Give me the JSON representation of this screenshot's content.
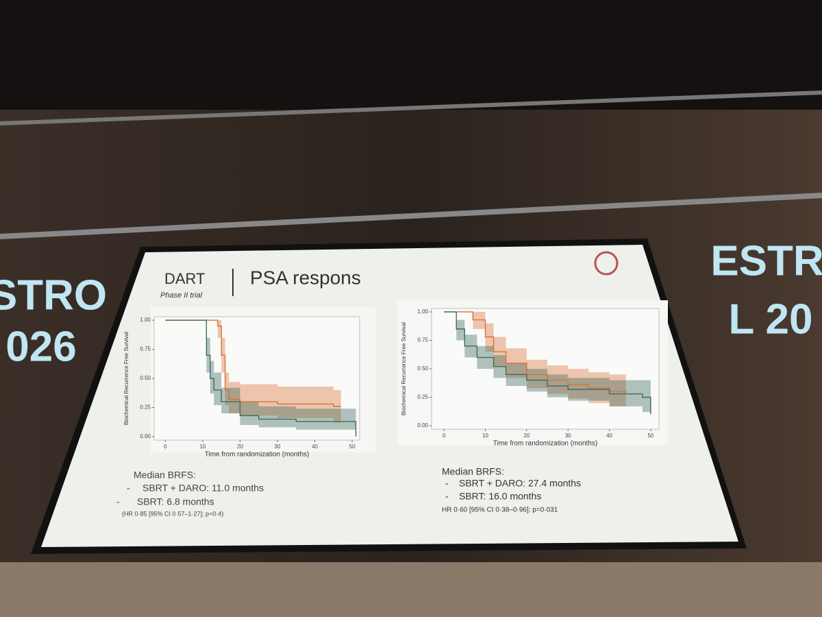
{
  "slide": {
    "label": "DART",
    "sublabel": "Phase II trial",
    "title": "PSA respons",
    "bullet": "-",
    "left_notes": {
      "heading": "Median BRFS:",
      "items": [
        "SBRT + DARO: 11.0 months",
        "SBRT: 6.8 months"
      ],
      "footnote": "(HR 0·85 [95% CI 0·57–1·27]; p=0·4)"
    },
    "right_notes": {
      "heading": "Median BRFS:",
      "items": [
        "SBRT + DARO: 27.4 months",
        "SBRT: 16.0 months"
      ],
      "footnote": "HR 0·60 [95% CI 0·38–0·96]; p=0·031"
    }
  },
  "backdrop": {
    "left": [
      "STRO",
      "026"
    ],
    "right": [
      "ESTR",
      "L 20"
    ]
  },
  "chart_data": [
    {
      "type": "line",
      "step": "post",
      "ylabel": "Biochemical Recurrence Free Survival",
      "xlabel": "Time from randomization (months)",
      "xlim": [
        -3,
        52
      ],
      "ylim": [
        -0.03,
        1.03
      ],
      "xticks": [
        0,
        10,
        20,
        30,
        40,
        50
      ],
      "yticks": [
        {
          "value": 0,
          "label": "0.00"
        },
        {
          "value": 0.25,
          "label": "0.25"
        },
        {
          "value": 0.5,
          "label": "0.50"
        },
        {
          "value": 0.75,
          "label": "0.75"
        },
        {
          "value": 1,
          "label": "1.00"
        }
      ],
      "series": [
        {
          "color": "#d9733a",
          "x": [
            0,
            10,
            13,
            14,
            15,
            16,
            17,
            20,
            30,
            45,
            47
          ],
          "values": [
            1,
            1,
            1,
            0.95,
            0.7,
            0.4,
            0.32,
            0.3,
            0.28,
            0.26,
            0.26
          ],
          "upper": [
            1,
            1,
            1,
            1,
            0.85,
            0.55,
            0.47,
            0.45,
            0.43,
            0.4,
            0.4
          ],
          "lower": [
            1,
            1,
            1,
            0.85,
            0.55,
            0.27,
            0.2,
            0.18,
            0.16,
            0.12,
            0.12
          ]
        },
        {
          "color": "#3f6b60",
          "x": [
            0,
            10,
            11,
            12,
            13,
            15,
            20,
            25,
            35,
            50,
            51
          ],
          "values": [
            1,
            1,
            0.7,
            0.5,
            0.4,
            0.3,
            0.18,
            0.15,
            0.13,
            0.13,
            0
          ],
          "upper": [
            1,
            1,
            0.85,
            0.65,
            0.55,
            0.42,
            0.3,
            0.26,
            0.24,
            0.24,
            0
          ],
          "lower": [
            1,
            1,
            0.55,
            0.37,
            0.27,
            0.2,
            0.1,
            0.08,
            0.06,
            0.06,
            0
          ]
        }
      ]
    },
    {
      "type": "line",
      "step": "post",
      "ylabel": "Biochemical Recurrence Free Survival",
      "xlabel": "Time from randomization (months)",
      "xlim": [
        -3,
        52
      ],
      "ylim": [
        -0.03,
        1.03
      ],
      "xticks": [
        0,
        10,
        20,
        30,
        40,
        50
      ],
      "yticks": [
        {
          "value": 0,
          "label": "0.00"
        },
        {
          "value": 0.25,
          "label": "0.25"
        },
        {
          "value": 0.5,
          "label": "0.50"
        },
        {
          "value": 0.75,
          "label": "0.75"
        },
        {
          "value": 1,
          "label": "1.00"
        }
      ],
      "series": [
        {
          "color": "#d9733a",
          "x": [
            0,
            2,
            7,
            10,
            12,
            15,
            20,
            25,
            30,
            35,
            40,
            44
          ],
          "values": [
            1,
            1,
            0.93,
            0.78,
            0.65,
            0.55,
            0.45,
            0.4,
            0.36,
            0.33,
            0.3,
            0.28
          ],
          "upper": [
            1,
            1,
            1,
            0.9,
            0.78,
            0.68,
            0.58,
            0.53,
            0.5,
            0.47,
            0.45,
            0.44
          ],
          "lower": [
            1,
            1,
            0.85,
            0.65,
            0.52,
            0.42,
            0.33,
            0.28,
            0.24,
            0.2,
            0.17,
            0.15
          ]
        },
        {
          "color": "#3f6b60",
          "x": [
            0,
            1,
            3,
            5,
            8,
            12,
            15,
            20,
            25,
            30,
            40,
            48,
            50
          ],
          "values": [
            1,
            1,
            0.85,
            0.7,
            0.6,
            0.52,
            0.45,
            0.4,
            0.35,
            0.32,
            0.28,
            0.25,
            0.1
          ],
          "upper": [
            1,
            1,
            0.93,
            0.8,
            0.7,
            0.62,
            0.55,
            0.5,
            0.45,
            0.42,
            0.4,
            0.4,
            0.4
          ],
          "lower": [
            1,
            1,
            0.75,
            0.6,
            0.5,
            0.42,
            0.35,
            0.3,
            0.25,
            0.22,
            0.17,
            0.12,
            0
          ]
        }
      ]
    }
  ]
}
